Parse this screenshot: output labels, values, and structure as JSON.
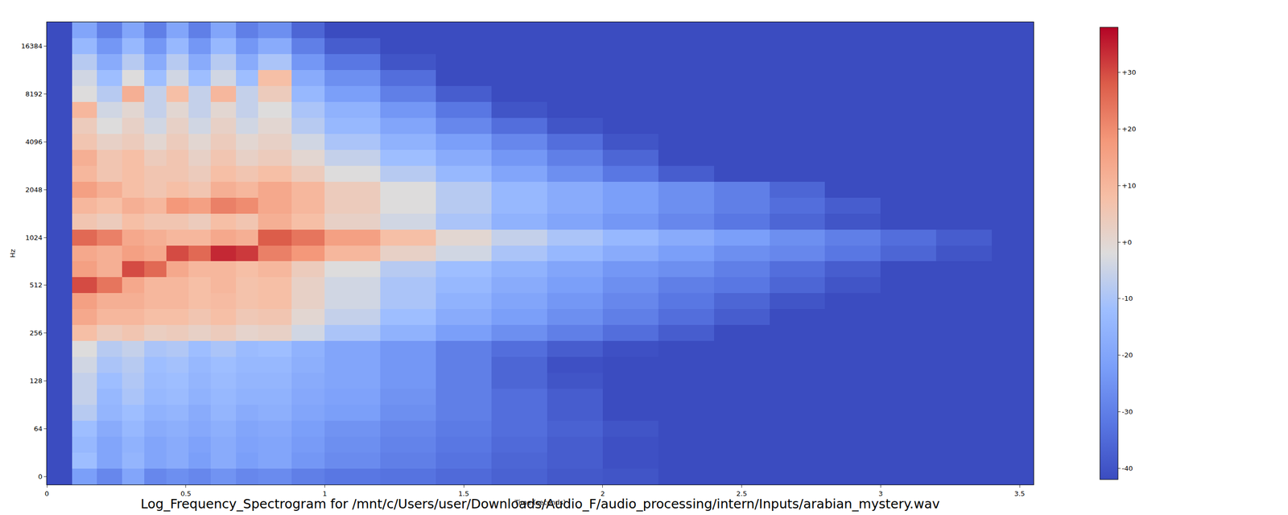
{
  "chart_data": {
    "type": "heatmap",
    "title": "Log_Frequency_Spectrogram for /mnt/c/Users/user/Downloads/Audio_F/audio_processing/intern/Inputs/arabian_mystery.wav",
    "x_label": "Time (seconds)",
    "y_label": "Hz",
    "x_bins": [
      0,
      0.09,
      0.18,
      0.27,
      0.35,
      0.43,
      0.51,
      0.59,
      0.68,
      0.76,
      0.88,
      1,
      1.2,
      1.4,
      1.6,
      1.8,
      2,
      2.2,
      2.4,
      2.6,
      2.8,
      3,
      3.2,
      3.4,
      3.55
    ],
    "xlim": [
      0,
      3.55
    ],
    "xticks": [
      0,
      0.5,
      1,
      1.5,
      2,
      2.5,
      3,
      3.5
    ],
    "categories": [
      "0",
      null,
      null,
      "64",
      null,
      null,
      "128",
      null,
      null,
      "256",
      null,
      null,
      "512",
      null,
      null,
      "1024",
      null,
      null,
      "2048",
      null,
      null,
      "4096",
      null,
      null,
      "8192",
      null,
      null,
      "16384",
      null
    ],
    "cells": [
      [
        -42,
        -22,
        -28,
        -20,
        -28,
        -26,
        -28,
        -25,
        -28,
        -27,
        -30,
        -32,
        -33,
        -35,
        -37,
        -39,
        -40,
        -42,
        -42,
        -42,
        -42,
        -42,
        -42,
        -42
      ],
      [
        -42,
        -12,
        -20,
        -15,
        -20,
        -18,
        -22,
        -18,
        -22,
        -20,
        -24,
        -27,
        -30,
        -33,
        -36,
        -38,
        -41,
        -42,
        -42,
        -42,
        -42,
        -42,
        -42,
        -42
      ],
      [
        -42,
        -14,
        -20,
        -16,
        -20,
        -18,
        -21,
        -18,
        -21,
        -20,
        -23,
        -26,
        -29,
        -32,
        -35,
        -38,
        -41,
        -42,
        -42,
        -42,
        -42,
        -42,
        -42,
        -42
      ],
      [
        -42,
        -12,
        -18,
        -14,
        -18,
        -17,
        -19,
        -17,
        -20,
        -19,
        -22,
        -25,
        -28,
        -31,
        -34,
        -37,
        -40,
        -42,
        -42,
        -42,
        -42,
        -42,
        -42,
        -42
      ],
      [
        -42,
        -8,
        -15,
        -12,
        -16,
        -15,
        -18,
        -15,
        -18,
        -17,
        -20,
        -22,
        -26,
        -30,
        -34,
        -38,
        -42,
        -42,
        -42,
        -42,
        -42,
        -42,
        -42,
        -42
      ],
      [
        -42,
        -6,
        -14,
        -10,
        -14,
        -13,
        -16,
        -14,
        -16,
        -16,
        -19,
        -21,
        -25,
        -30,
        -34,
        -38,
        -42,
        -42,
        -42,
        -42,
        -42,
        -42,
        -42,
        -42
      ],
      [
        -42,
        -6,
        -12,
        -9,
        -13,
        -12,
        -15,
        -13,
        -15,
        -15,
        -18,
        -20,
        -24,
        -30,
        -36,
        -40,
        -42,
        -42,
        -42,
        -42,
        -42,
        -42,
        -42,
        -42
      ],
      [
        -42,
        -4,
        -10,
        -8,
        -12,
        -11,
        -14,
        -12,
        -14,
        -14,
        -17,
        -20,
        -24,
        -30,
        -36,
        -41,
        -42,
        -42,
        -42,
        -42,
        -42,
        -42,
        -42,
        -42
      ],
      [
        -42,
        -2,
        -8,
        -6,
        -10,
        -9,
        -12,
        -10,
        -13,
        -12,
        -16,
        -20,
        -24,
        -30,
        -34,
        -38,
        -41,
        -42,
        -42,
        -42,
        -42,
        -42,
        -42,
        -42
      ],
      [
        -42,
        8,
        4,
        6,
        3,
        4,
        2,
        4,
        1,
        2,
        -4,
        -10,
        -16,
        -22,
        -26,
        -30,
        -34,
        -38,
        -42,
        -42,
        -42,
        -42,
        -42,
        -42
      ],
      [
        -42,
        14,
        10,
        10,
        8,
        8,
        6,
        8,
        5,
        6,
        0,
        -6,
        -12,
        -18,
        -22,
        -26,
        -30,
        -34,
        -38,
        -42,
        -42,
        -42,
        -42,
        -42
      ],
      [
        -42,
        16,
        12,
        12,
        10,
        10,
        8,
        9,
        7,
        8,
        2,
        -4,
        -10,
        -16,
        -20,
        -24,
        -28,
        -32,
        -36,
        -40,
        -42,
        -42,
        -42,
        -42
      ],
      [
        -42,
        30,
        24,
        14,
        10,
        10,
        8,
        10,
        7,
        8,
        2,
        -4,
        -10,
        -14,
        -18,
        -22,
        -26,
        -30,
        -32,
        -36,
        -40,
        -42,
        -42,
        -42
      ],
      [
        -42,
        16,
        12,
        30,
        26,
        14,
        10,
        10,
        8,
        10,
        4,
        -2,
        -8,
        -12,
        -16,
        -20,
        -24,
        -26,
        -30,
        -34,
        -38,
        -42,
        -42,
        -42
      ],
      [
        -42,
        14,
        12,
        16,
        14,
        30,
        26,
        34,
        32,
        22,
        18,
        10,
        2,
        -4,
        -10,
        -14,
        -18,
        -22,
        -26,
        -28,
        -32,
        -36,
        -40,
        -42
      ],
      [
        -42,
        26,
        22,
        14,
        12,
        10,
        10,
        14,
        12,
        28,
        24,
        16,
        8,
        0,
        -6,
        -10,
        -14,
        -18,
        -22,
        -26,
        -30,
        -34,
        -38,
        -42
      ],
      [
        -42,
        6,
        4,
        8,
        6,
        6,
        4,
        8,
        6,
        12,
        8,
        2,
        -4,
        -10,
        -16,
        -20,
        -24,
        -28,
        -32,
        -36,
        -40,
        -42,
        -42,
        -42
      ],
      [
        -42,
        10,
        8,
        12,
        10,
        18,
        16,
        22,
        20,
        14,
        10,
        4,
        -2,
        -8,
        -14,
        -18,
        -22,
        -26,
        -30,
        -34,
        -38,
        -42,
        -42,
        -42
      ],
      [
        -42,
        16,
        12,
        8,
        6,
        8,
        6,
        12,
        10,
        14,
        10,
        4,
        -2,
        -8,
        -14,
        -18,
        -22,
        -26,
        -30,
        -36,
        -42,
        -42,
        -42,
        -42
      ],
      [
        -42,
        10,
        6,
        8,
        6,
        6,
        4,
        8,
        6,
        8,
        4,
        -2,
        -8,
        -14,
        -20,
        -26,
        -32,
        -38,
        -42,
        -42,
        -42,
        -42,
        -42,
        -42
      ],
      [
        -42,
        12,
        6,
        8,
        4,
        6,
        2,
        6,
        2,
        4,
        0,
        -6,
        -12,
        -18,
        -24,
        -30,
        -36,
        -42,
        -42,
        -42,
        -42,
        -42,
        -42,
        -42
      ],
      [
        -42,
        6,
        2,
        4,
        0,
        4,
        0,
        4,
        0,
        2,
        -4,
        -10,
        -16,
        -22,
        -28,
        -34,
        -40,
        -42,
        -42,
        -42,
        -42,
        -42,
        -42,
        -42
      ],
      [
        -42,
        4,
        -2,
        2,
        -4,
        2,
        -4,
        2,
        -4,
        0,
        -8,
        -14,
        -20,
        -28,
        -34,
        -40,
        -42,
        -42,
        -42,
        -42,
        -42,
        -42,
        -42,
        -42
      ],
      [
        -42,
        10,
        -4,
        0,
        -6,
        0,
        -6,
        0,
        -6,
        -2,
        -10,
        -16,
        -24,
        -32,
        -40,
        -42,
        -42,
        -42,
        -42,
        -42,
        -42,
        -42,
        -42,
        -42
      ],
      [
        -42,
        -2,
        -8,
        12,
        -6,
        8,
        -6,
        10,
        -6,
        4,
        -14,
        -22,
        -30,
        -38,
        -42,
        -42,
        -42,
        -42,
        -42,
        -42,
        -42,
        -42,
        -42,
        -42
      ],
      [
        -42,
        -4,
        -12,
        -2,
        -12,
        -4,
        -12,
        -4,
        -12,
        8,
        -18,
        -26,
        -34,
        -42,
        -42,
        -42,
        -42,
        -42,
        -42,
        -42,
        -42,
        -42,
        -42,
        -42
      ],
      [
        -42,
        -8,
        -18,
        -8,
        -18,
        -8,
        -18,
        -8,
        -18,
        -10,
        -24,
        -32,
        -40,
        -42,
        -42,
        -42,
        -42,
        -42,
        -42,
        -42,
        -42,
        -42,
        -42,
        -42
      ],
      [
        -42,
        -14,
        -24,
        -14,
        -24,
        -14,
        -24,
        -14,
        -24,
        -18,
        -30,
        -38,
        -42,
        -42,
        -42,
        -42,
        -42,
        -42,
        -42,
        -42,
        -42,
        -42,
        -42,
        -42
      ],
      [
        -42,
        -20,
        -30,
        -20,
        -30,
        -20,
        -30,
        -20,
        -30,
        -26,
        -36,
        -42,
        -42,
        -42,
        -42,
        -42,
        -42,
        -42,
        -42,
        -42,
        -42,
        -42,
        -42,
        -42
      ]
    ],
    "clim": [
      -42,
      38
    ],
    "cticks": [
      {
        "value": -40,
        "label": "-40"
      },
      {
        "value": -30,
        "label": "-30"
      },
      {
        "value": -20,
        "label": "-20"
      },
      {
        "value": -10,
        "label": "-10"
      },
      {
        "value": 0,
        "label": "+0"
      },
      {
        "value": 10,
        "label": "+10"
      },
      {
        "value": 20,
        "label": "+20"
      },
      {
        "value": 30,
        "label": "+30"
      }
    ]
  }
}
